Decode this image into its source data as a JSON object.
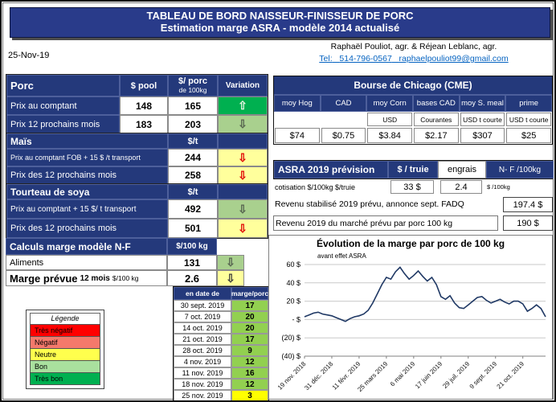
{
  "title_bar": {
    "line1": "TABLEAU DE BORD NAISSEUR-FINISSEUR DE PORC",
    "line2": "Estimation marge ASRA - modèle 2014 actualisé"
  },
  "header": {
    "date": "25-Nov-19",
    "authors": "Raphaël Pouliot, agr.    &    Réjean Leblanc, agr.",
    "tel_label": "Tel:",
    "phone": "514-796-0567",
    "email": "raphaelpouliot99@gmail.com"
  },
  "colors": {
    "navy": "#24397B",
    "title_navy": "#293B8A",
    "link_blue": "#0563C1",
    "green_strong": "#00B050",
    "green_light": "#A9D08E",
    "green_cell": "#92D050",
    "yellow_light": "#FFFF9C",
    "yellow": "#FFFF00",
    "red": "#FF0000",
    "salmon": "#F4796B"
  },
  "porc_table": {
    "title": "Porc",
    "col_pool": "$ pool",
    "col_price_line1": "$/ porc",
    "col_price_line2": "de 100kg",
    "col_variation": "Variation",
    "rows": [
      {
        "label": "Prix au comptant",
        "pool": "148",
        "price": "165",
        "arrow": "⇧",
        "arrow_bg": "#00B050",
        "arrow_fg": "#E8F5E2"
      },
      {
        "label": "Prix 12 prochains mois",
        "pool": "183",
        "price": "203",
        "arrow": "⇩",
        "arrow_bg": "#A9D08E",
        "arrow_fg": "#55624E"
      }
    ]
  },
  "mais_table": {
    "title": "Maïs",
    "unit": "$/t",
    "rows": [
      {
        "label": "Prix au comptant FOB + 15 $ /t transport",
        "value": "244",
        "arrow": "⇩",
        "arrow_bg": "#FFFF9C",
        "arrow_fg": "#E00000"
      },
      {
        "label": "Prix des 12 prochains mois",
        "value": "258",
        "arrow": "⇩",
        "arrow_bg": "#FFFF9C",
        "arrow_fg": "#E00000"
      }
    ]
  },
  "tourteau_table": {
    "title": "Tourteau de soya",
    "unit": "$/t",
    "rows": [
      {
        "label": "Prix au comptant + 15 $/ t transport",
        "value": "492",
        "arrow": "⇩",
        "arrow_bg": "#A9D08E",
        "arrow_fg": "#55624E"
      },
      {
        "label": "Prix des 12 prochains mois",
        "value": "501",
        "arrow": "⇩",
        "arrow_bg": "#FFFF9C",
        "arrow_fg": "#E00000"
      }
    ]
  },
  "calculs": {
    "title": "Calculs marge  modèle N-F",
    "unit": "$/100 kg",
    "aliments_label": "Aliments",
    "aliments_value": "131",
    "aliments_arrow": "⇩",
    "aliments_arrow_bg": "#A9D08E",
    "aliments_arrow_fg": "#55624E",
    "marge_label": "Marge prévue",
    "marge_sublabel": "12 mois",
    "marge_unit": "$/100 kg",
    "marge_value": "2.6",
    "marge_arrow": "⇩",
    "marge_arrow_bg": "#FFFF9C",
    "marge_arrow_fg": "#3a3a3a"
  },
  "legende": {
    "title": "Légende",
    "items": [
      {
        "label": "Très négatif",
        "color": "#FF0000"
      },
      {
        "label": "Négatif",
        "color": "#F4796B"
      },
      {
        "label": "Neutre",
        "color": "#FFFF4D"
      },
      {
        "label": "Bon",
        "color": "#A9E09E"
      },
      {
        "label": "Très bon",
        "color": "#00B050"
      }
    ]
  },
  "marge_history": {
    "col_date": "en date de",
    "col_value": "marge/porc",
    "rows": [
      {
        "date": "30 sept. 2019",
        "value": "17",
        "bg": "#92D050"
      },
      {
        "date": "7 oct. 2019",
        "value": "20",
        "bg": "#92D050"
      },
      {
        "date": "14 oct. 2019",
        "value": "20",
        "bg": "#92D050"
      },
      {
        "date": "21 oct. 2019",
        "value": "17",
        "bg": "#92D050"
      },
      {
        "date": "28 oct. 2019",
        "value": "9",
        "bg": "#92D050"
      },
      {
        "date": "4 nov. 2019",
        "value": "12",
        "bg": "#92D050"
      },
      {
        "date": "11 nov. 2019",
        "value": "16",
        "bg": "#92D050"
      },
      {
        "date": "18 nov. 2019",
        "value": "12",
        "bg": "#92D050"
      },
      {
        "date": "25 nov. 2019",
        "value": "3",
        "bg": "#FFFF00"
      }
    ]
  },
  "cme": {
    "title": "Bourse de Chicago (CME)",
    "columns": [
      "moy Hog",
      "CAD",
      "moy Corn",
      "bases CAD",
      "moy S. meal",
      "prime"
    ],
    "subheaders": [
      "",
      "",
      "USD",
      "Courantes",
      "USD t courte",
      "USD t courte"
    ],
    "values": [
      "$74",
      "$0.75",
      "$3.84",
      "$2.17",
      "$307",
      "$25"
    ]
  },
  "asra": {
    "title": "ASRA 2019 prévision",
    "col_truie": "$ / truie",
    "col_engrais": "engrais",
    "col_nf": "N- F /100kg",
    "cotisation_label": "cotisation $/100kg   $/truie",
    "cotisation_truie": "33 $",
    "cotisation_engrais": "2.4",
    "cotisation_engrais_unit": "$ /100kg",
    "revenu_stabilise_label": "Revenu stabilisé 2019 prévu, annonce sept. FADQ",
    "revenu_stabilise_value": "197.4 $",
    "revenu_marche_label": "Revenu  2019 du marché prévu par porc 100 kg",
    "revenu_marche_value": "190 $"
  },
  "chart_data": {
    "type": "line",
    "title": "Évolution de la marge par porc de 100 kg",
    "annotation": "avant effet ASRA",
    "ylim": [
      -40,
      60
    ],
    "y_step": 20,
    "y_tick_labels": [
      "60 $",
      "40 $",
      "20 $",
      "- $",
      "(20) $",
      "(40) $"
    ],
    "x_tick_labels": [
      "19 nov. 2018",
      "31 déc. 2018",
      "11 févr. 2019",
      "25 mars 2019",
      "6 mai 2019",
      "17 juin 2019",
      "29 juil. 2019",
      "9 sept. 2019",
      "21 oct. 2019"
    ],
    "x_tick_indices": [
      0,
      6,
      12,
      18,
      24,
      30,
      36,
      42,
      48
    ],
    "grid": true,
    "legend": "none",
    "line_color": "#1F3864",
    "values": [
      3,
      5,
      7,
      8,
      6,
      5,
      4,
      2,
      0,
      -2,
      1,
      3,
      4,
      6,
      10,
      18,
      28,
      38,
      46,
      44,
      52,
      57,
      50,
      44,
      48,
      53,
      47,
      42,
      46,
      38,
      25,
      22,
      26,
      18,
      13,
      12,
      16,
      20,
      24,
      25,
      21,
      18,
      20,
      22,
      19,
      17,
      20,
      20,
      17,
      9,
      12,
      16,
      12,
      3
    ]
  }
}
